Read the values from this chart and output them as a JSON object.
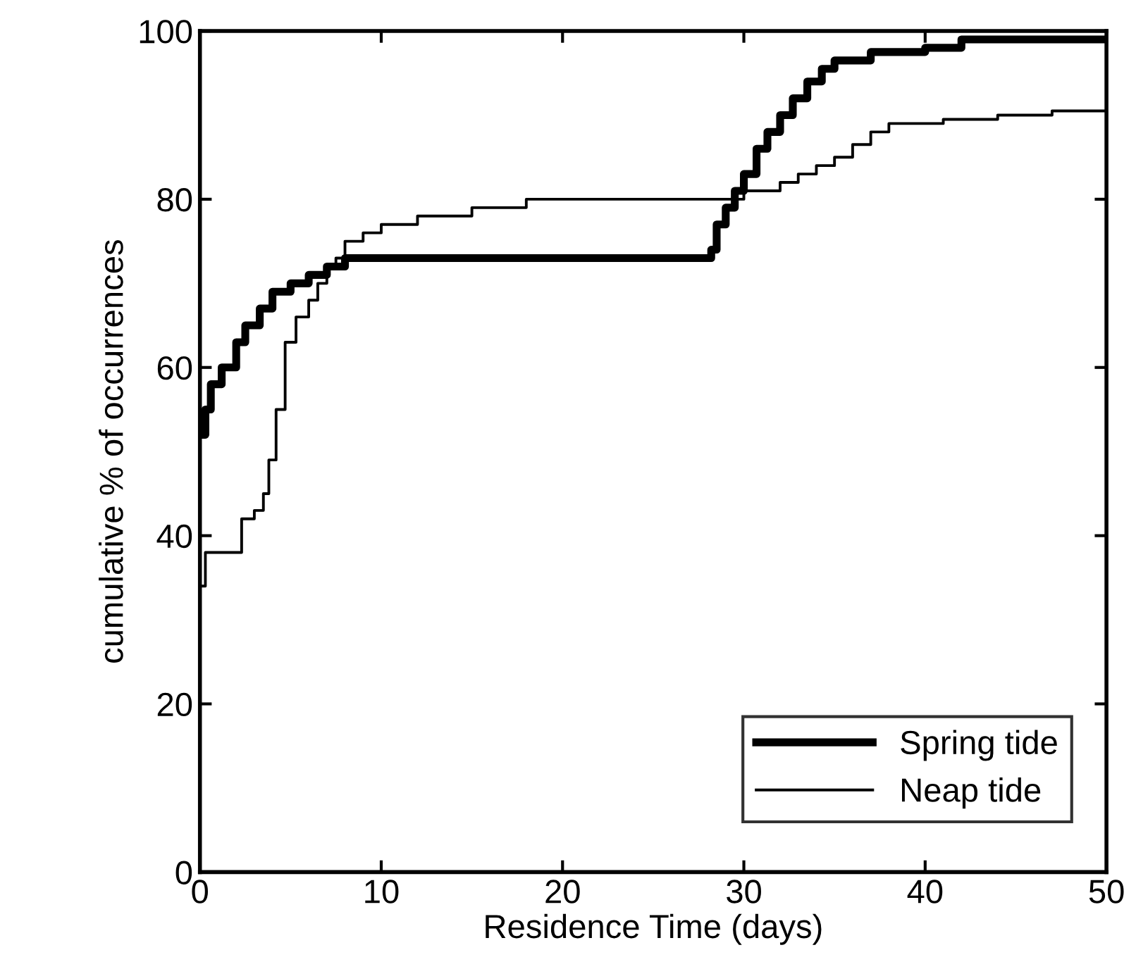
{
  "chart_data": {
    "type": "step",
    "xlabel": "Residence Time (days)",
    "ylabel": "cumulative % of occurrences",
    "xlim": [
      0,
      50
    ],
    "ylim": [
      0,
      100
    ],
    "xticks": [
      0,
      10,
      20,
      30,
      40,
      50
    ],
    "yticks": [
      0,
      20,
      40,
      60,
      80,
      100
    ],
    "grid": false,
    "legend": "bottom right",
    "marker": "none",
    "line_style": "solid",
    "series": [
      {
        "name": "Spring tide",
        "color": "#000000",
        "x": [
          0,
          0.3,
          0.6,
          1.2,
          2,
          2.5,
          3.3,
          4,
          5,
          6,
          7,
          8,
          28.2,
          28.5,
          29,
          29.5,
          30,
          30.7,
          31.3,
          32,
          32.7,
          33.5,
          34.3,
          35,
          37,
          40,
          42,
          50
        ],
        "values": [
          52,
          55,
          58,
          60,
          63,
          65,
          67,
          69,
          70,
          71,
          72,
          73,
          74,
          77,
          79,
          81,
          83,
          86,
          88,
          90,
          92,
          94,
          95.5,
          96.5,
          97.5,
          98,
          99,
          99
        ]
      },
      {
        "name": "Neap tide",
        "color": "#000000",
        "x": [
          0,
          0.3,
          2.3,
          3,
          3.5,
          3.8,
          4.2,
          4.7,
          5.3,
          6,
          6.5,
          7,
          7.5,
          8,
          9,
          10,
          12,
          15,
          18,
          28,
          30,
          32,
          33,
          34,
          35,
          36,
          37,
          38,
          41,
          44,
          47,
          50
        ],
        "values": [
          34,
          38,
          42,
          43,
          45,
          49,
          55,
          63,
          66,
          68,
          70,
          72,
          73,
          75,
          76,
          77,
          78,
          79,
          80,
          80,
          81,
          82,
          83,
          84,
          85,
          86.5,
          88,
          89,
          89.5,
          90,
          90.5,
          91
        ]
      }
    ]
  }
}
